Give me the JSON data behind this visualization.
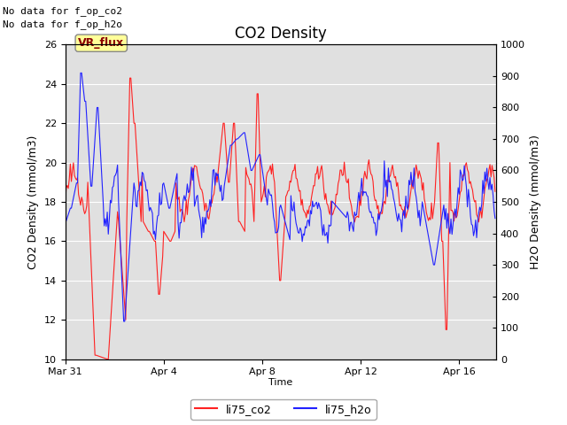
{
  "title": "CO2 Density",
  "xlabel": "Time",
  "ylabel_left": "CO2 Density (mmol/m3)",
  "ylabel_right": "H2O Density (mmol/m3)",
  "ylim_left": [
    10,
    26
  ],
  "ylim_right": [
    0,
    1000
  ],
  "yticks_left": [
    10,
    12,
    14,
    16,
    18,
    20,
    22,
    24,
    26
  ],
  "yticks_right": [
    0,
    100,
    200,
    300,
    400,
    500,
    600,
    700,
    800,
    900,
    1000
  ],
  "xtick_labels": [
    "Mar 31",
    "Apr 4",
    "Apr 8",
    "Apr 12",
    "Apr 16"
  ],
  "annotation_lines": [
    "No data for f_op_co2",
    "No data for f_op_h2o"
  ],
  "vr_flux_label": "VR_flux",
  "legend_labels": [
    "li75_co2",
    "li75_h2o"
  ],
  "line_colors": [
    "#ff2222",
    "#2222ff"
  ],
  "plot_bg_color": "#e0e0e0",
  "figure_bg_color": "#ffffff",
  "grid_color": "#ffffff",
  "title_fontsize": 12,
  "label_fontsize": 9,
  "tick_fontsize": 8,
  "annotation_fontsize": 8,
  "line_width": 0.8
}
